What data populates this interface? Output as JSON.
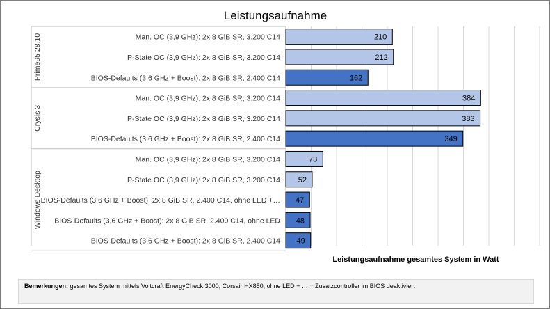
{
  "chart_data": {
    "type": "bar",
    "orientation": "horizontal",
    "title": "Leistungsaufnahme",
    "xlabel": "Leistungsaufnahme  gesamtes System in Watt",
    "ylabel": "",
    "xlim": [
      0,
      500
    ],
    "grid": true,
    "groups": [
      {
        "name": "Prime95 28.10",
        "bars": [
          {
            "label": "Man. OC (3,9 GHz): 2x 8 GiB SR, 3.200 C14",
            "value": 210,
            "color": "#b4c6e7"
          },
          {
            "label": "P-State OC (3,9 GHz): 2x 8 GiB SR, 3.200 C14",
            "value": 212,
            "color": "#b4c6e7"
          },
          {
            "label": "BIOS-Defaults (3,6 GHz + Boost): 2x 8 GiB SR, 2.400 C14",
            "value": 162,
            "color": "#4472c4"
          }
        ]
      },
      {
        "name": "Crysis 3",
        "bars": [
          {
            "label": "Man. OC (3,9 GHz): 2x 8 GiB SR, 3.200 C14",
            "value": 384,
            "color": "#b4c6e7"
          },
          {
            "label": "P-State OC (3,9 GHz): 2x 8 GiB SR, 3.200 C14",
            "value": 383,
            "color": "#b4c6e7"
          },
          {
            "label": "BIOS-Defaults (3,6 GHz + Boost): 2x 8 GiB SR, 2.400 C14",
            "value": 349,
            "color": "#4472c4"
          }
        ]
      },
      {
        "name": "Windows Desktop",
        "bars": [
          {
            "label": "Man. OC (3,9 GHz): 2x 8 GiB SR, 3.200 C14",
            "value": 73,
            "color": "#b4c6e7"
          },
          {
            "label": "P-State OC (3,9 GHz): 2x 8 GiB SR, 3.200 C14",
            "value": 52,
            "color": "#b4c6e7"
          },
          {
            "label": "BIOS-Defaults (3,6 GHz + Boost): 2x 8 GiB SR, 2.400 C14, ohne LED +…",
            "value": 47,
            "color": "#4472c4"
          },
          {
            "label": "BIOS-Defaults (3,6 GHz + Boost): 2x 8 GiB SR, 2.400 C14, ohne LED",
            "value": 48,
            "color": "#4472c4"
          },
          {
            "label": "BIOS-Defaults (3,6 GHz + Boost): 2x 8 GiB SR, 2.400 C14",
            "value": 49,
            "color": "#4472c4"
          }
        ]
      }
    ]
  },
  "notes": {
    "label": "Bemerkungen:",
    "text": " gesamtes System mittels Voltcraft EnergyCheck 3000, Corsair HX850; ohne LED + … = Zusatzcontroller im BIOS deaktiviert"
  }
}
